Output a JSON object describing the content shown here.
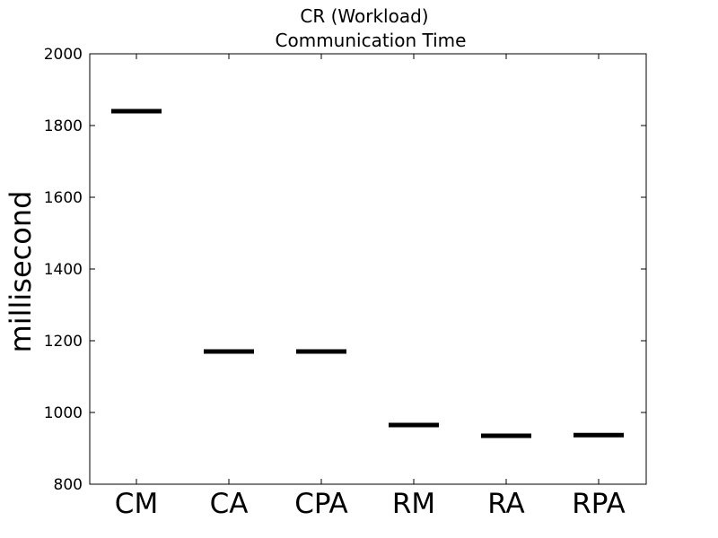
{
  "chart_data": {
    "type": "scatter",
    "marker": "horizontal-line",
    "title": [
      "CR (Workload)",
      "Communication Time"
    ],
    "xlabel": "",
    "ylabel": "millisecond",
    "categories": [
      "CM",
      "CA",
      "CPA",
      "RM",
      "RA",
      "RPA"
    ],
    "values": [
      1840,
      1170,
      1170,
      965,
      935,
      937
    ],
    "ylim": [
      800,
      2000
    ],
    "yticks": [
      800,
      1000,
      1200,
      1400,
      1600,
      1800,
      2000
    ],
    "grid": false,
    "legend": "none",
    "colors": {
      "marker": "#000000",
      "axes": "#000000",
      "background": "#ffffff"
    }
  }
}
